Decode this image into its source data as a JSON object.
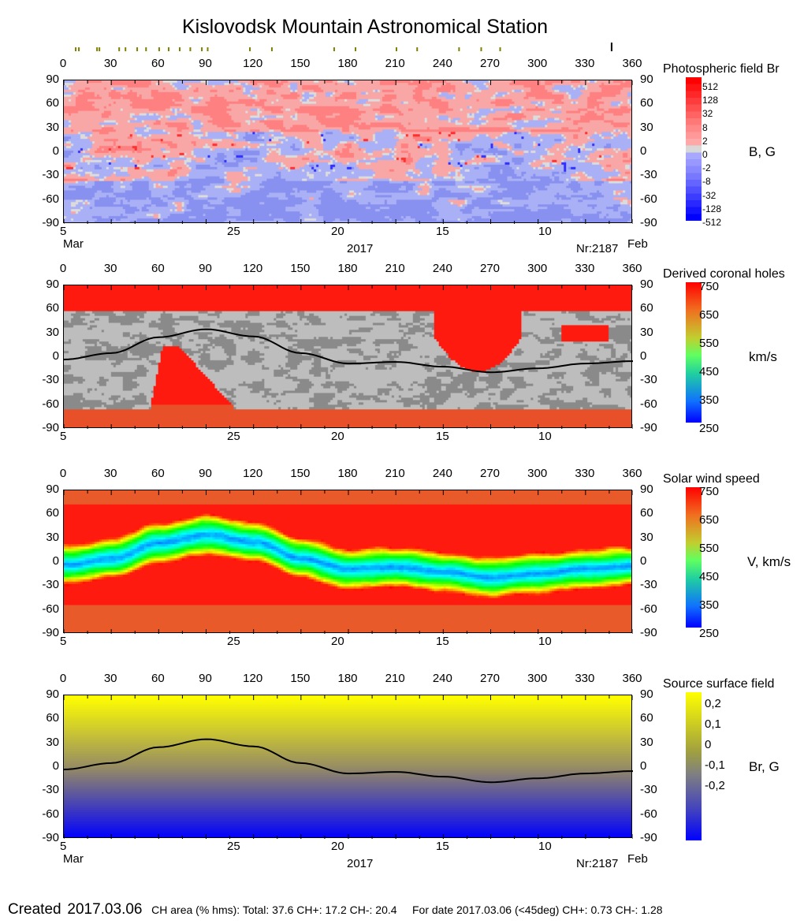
{
  "title": "Kislovodsk Mountain Astronomical Station",
  "top_markers_lon": [
    7.5,
    9.5,
    21,
    22.5,
    35,
    39,
    46.4,
    52,
    60.3,
    66.3,
    73.3,
    80,
    87.3,
    91,
    117.7,
    131.6,
    171,
    184.5,
    210.4,
    223.5,
    250,
    264,
    276
  ],
  "current_marker_lon": 346.5,
  "colors": {
    "marker": "#808000",
    "ch_gray": "#bdbdbd",
    "ch_dark": "#8a8a8a"
  },
  "chart_data": [
    {
      "type": "heatmap",
      "title": "Photospheric field Br",
      "unit": "B, G",
      "x_ticks": [
        "0",
        "30",
        "60",
        "90",
        "120",
        "150",
        "180",
        "210",
        "240",
        "270",
        "300",
        "330",
        "360"
      ],
      "y_ticks": [
        "90",
        "60",
        "30",
        "0",
        "-30",
        "-60",
        "-90"
      ],
      "date_ticks": [
        "5",
        "25",
        "20",
        "15",
        "10"
      ],
      "month_left": "Mar",
      "year": "2017",
      "rotation": "Nr:2187",
      "month_right": "Feb",
      "colorbar_ticks": [
        "512",
        "128",
        "32",
        "8",
        "2",
        "0",
        "-2",
        "-8",
        "-32",
        "-128",
        "-512"
      ],
      "xlim": [
        0,
        360
      ],
      "ylim": [
        -90,
        90
      ]
    },
    {
      "type": "heatmap",
      "title": "Derived coronal holes",
      "unit": "km/s",
      "x_ticks": [
        "0",
        "30",
        "60",
        "90",
        "120",
        "150",
        "180",
        "210",
        "240",
        "270",
        "300",
        "330",
        "360"
      ],
      "y_ticks": [
        "90",
        "60",
        "30",
        "0",
        "-30",
        "-60",
        "-90"
      ],
      "date_ticks": [
        "5",
        "25",
        "20",
        "15",
        "10"
      ],
      "colorbar_ticks": [
        "750",
        "650",
        "550",
        "450",
        "350",
        "250"
      ],
      "xlim": [
        0,
        360
      ],
      "ylim": [
        -90,
        90
      ]
    },
    {
      "type": "heatmap",
      "title": "Solar wind speed",
      "unit": "V, km/s",
      "x_ticks": [
        "0",
        "30",
        "60",
        "90",
        "120",
        "150",
        "180",
        "210",
        "240",
        "270",
        "300",
        "330",
        "360"
      ],
      "y_ticks": [
        "90",
        "60",
        "30",
        "0",
        "-30",
        "-60",
        "-90"
      ],
      "date_ticks": [
        "5",
        "25",
        "20",
        "15",
        "10"
      ],
      "colorbar_ticks": [
        "750",
        "650",
        "550",
        "450",
        "350",
        "250"
      ],
      "xlim": [
        0,
        360
      ],
      "ylim": [
        -90,
        90
      ]
    },
    {
      "type": "heatmap",
      "title": "Source surface field",
      "unit": "Br, G",
      "x_ticks": [
        "0",
        "30",
        "60",
        "90",
        "120",
        "150",
        "180",
        "210",
        "240",
        "270",
        "300",
        "330",
        "360"
      ],
      "y_ticks": [
        "90",
        "60",
        "30",
        "0",
        "-30",
        "-60",
        "-90"
      ],
      "date_ticks": [
        "5",
        "25",
        "20",
        "15",
        "10"
      ],
      "month_left": "Mar",
      "year": "2017",
      "rotation": "Nr:2187",
      "month_right": "Feb",
      "colorbar_ticks": [
        "0,2",
        "0,1",
        "0",
        "-0,1",
        "-0,2"
      ],
      "neutral_line": {
        "lon": [
          0,
          30,
          60,
          90,
          120,
          150,
          180,
          210,
          240,
          270,
          300,
          330,
          360
        ],
        "lat": [
          -3,
          5,
          25,
          35,
          26,
          5,
          -8,
          -6,
          -12,
          -19,
          -14,
          -8,
          -5
        ]
      },
      "xlim": [
        0,
        360
      ],
      "ylim": [
        -90,
        90
      ]
    }
  ],
  "footer": {
    "created_label": "Created",
    "created_date": "2017.03.06",
    "ch_area": "CH area (% hms): Total: 37.6 CH+: 17.2   CH-: 20.4",
    "for_date": "For date 2017.03.06 (<45deg) CH+: 0.73    CH-: 1.28"
  }
}
